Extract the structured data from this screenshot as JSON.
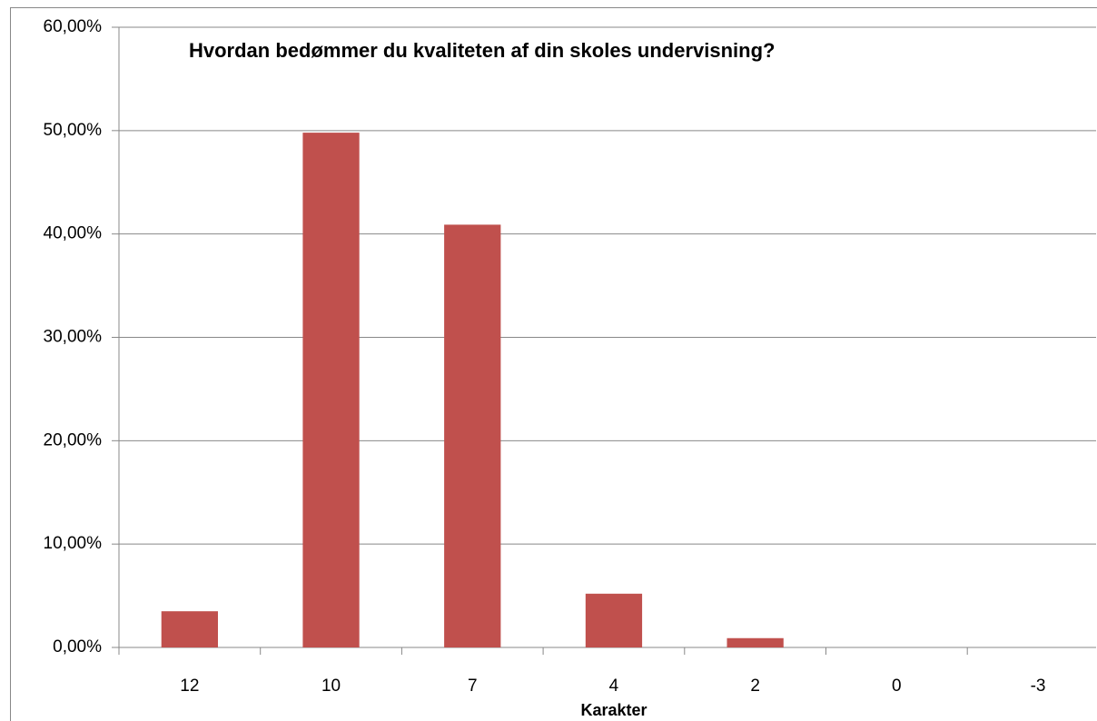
{
  "chart_data": {
    "type": "bar",
    "title": "Hvordan bedømmer du kvaliteten af din skoles undervisning?",
    "x_label": "Karakter",
    "categories": [
      "12",
      "10",
      "7",
      "4",
      "2",
      "0",
      "-3"
    ],
    "values": [
      3.5,
      49.8,
      40.9,
      5.2,
      0.9,
      0,
      0
    ],
    "color": "#c0504d",
    "ylim": [
      0,
      60
    ],
    "yticks": [
      {
        "value": 0,
        "label": "0,00%"
      },
      {
        "value": 10,
        "label": "10,00%"
      },
      {
        "value": 20,
        "label": "20,00%"
      },
      {
        "value": 30,
        "label": "30,00%"
      },
      {
        "value": 40,
        "label": "40,00%"
      },
      {
        "value": 50,
        "label": "50,00%"
      },
      {
        "value": 60,
        "label": "60,00%"
      }
    ],
    "grid": true
  }
}
